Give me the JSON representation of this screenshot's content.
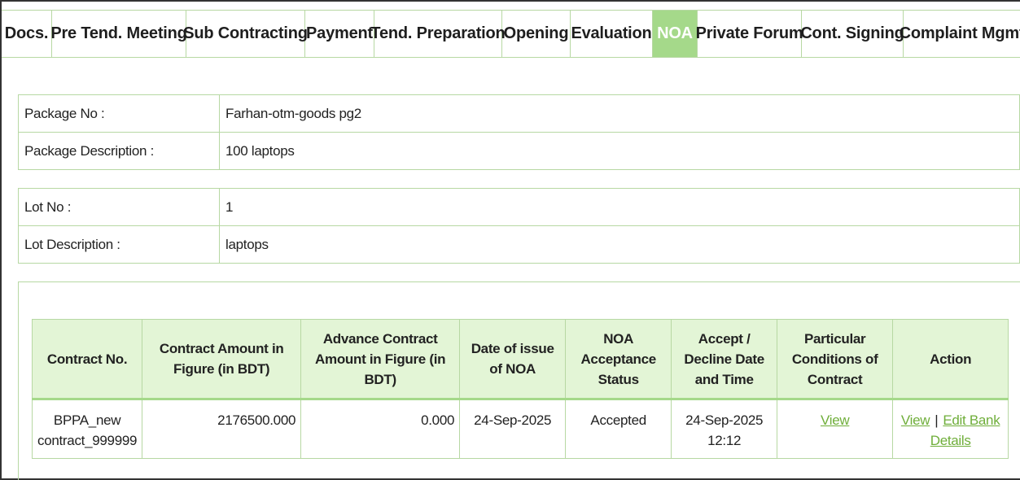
{
  "tabs": [
    {
      "label": "Docs.",
      "active": false
    },
    {
      "label": "Pre Tend. Meeting",
      "active": false
    },
    {
      "label": "Sub Contracting",
      "active": false
    },
    {
      "label": "Payment",
      "active": false
    },
    {
      "label": "Tend. Preparation",
      "active": false
    },
    {
      "label": "Opening",
      "active": false
    },
    {
      "label": "Evaluation",
      "active": false
    },
    {
      "label": "NOA",
      "active": true
    },
    {
      "label": "Private Forum",
      "active": false
    },
    {
      "label": "Cont. Signing",
      "active": false
    },
    {
      "label": "Complaint Mgmt",
      "active": false
    }
  ],
  "package": {
    "no_label": "Package No :",
    "no_value": "Farhan-otm-goods pg2",
    "desc_label": "Package Description :",
    "desc_value": "100 laptops"
  },
  "lot": {
    "no_label": "Lot No :",
    "no_value": "1",
    "desc_label": "Lot Description :",
    "desc_value": "laptops"
  },
  "contract_table": {
    "headers": [
      "Contract No.",
      "Contract Amount in Figure (in BDT)",
      "Advance Contract Amount in Figure (in BDT)",
      "Date of issue of NOA",
      "NOA Acceptance Status",
      "Accept / Decline Date and Time",
      "Particular Conditions of Contract",
      "Action"
    ],
    "row": {
      "contract_no": "BPPA_new contract_999999",
      "amount": "2176500.000",
      "advance_amount": "0.000",
      "issue_date": "24-Sep-2025",
      "status": "Accepted",
      "accept_datetime": "24-Sep-2025 12:12",
      "conditions_link": "View",
      "action_view": "View",
      "action_separator": "|",
      "action_edit": "Edit Bank Details"
    }
  },
  "colors": {
    "tab_active_bg": "#a5d98a",
    "header_bg": "#e3f5d6",
    "border": "#b7d8a3",
    "link": "#6fae3a"
  }
}
